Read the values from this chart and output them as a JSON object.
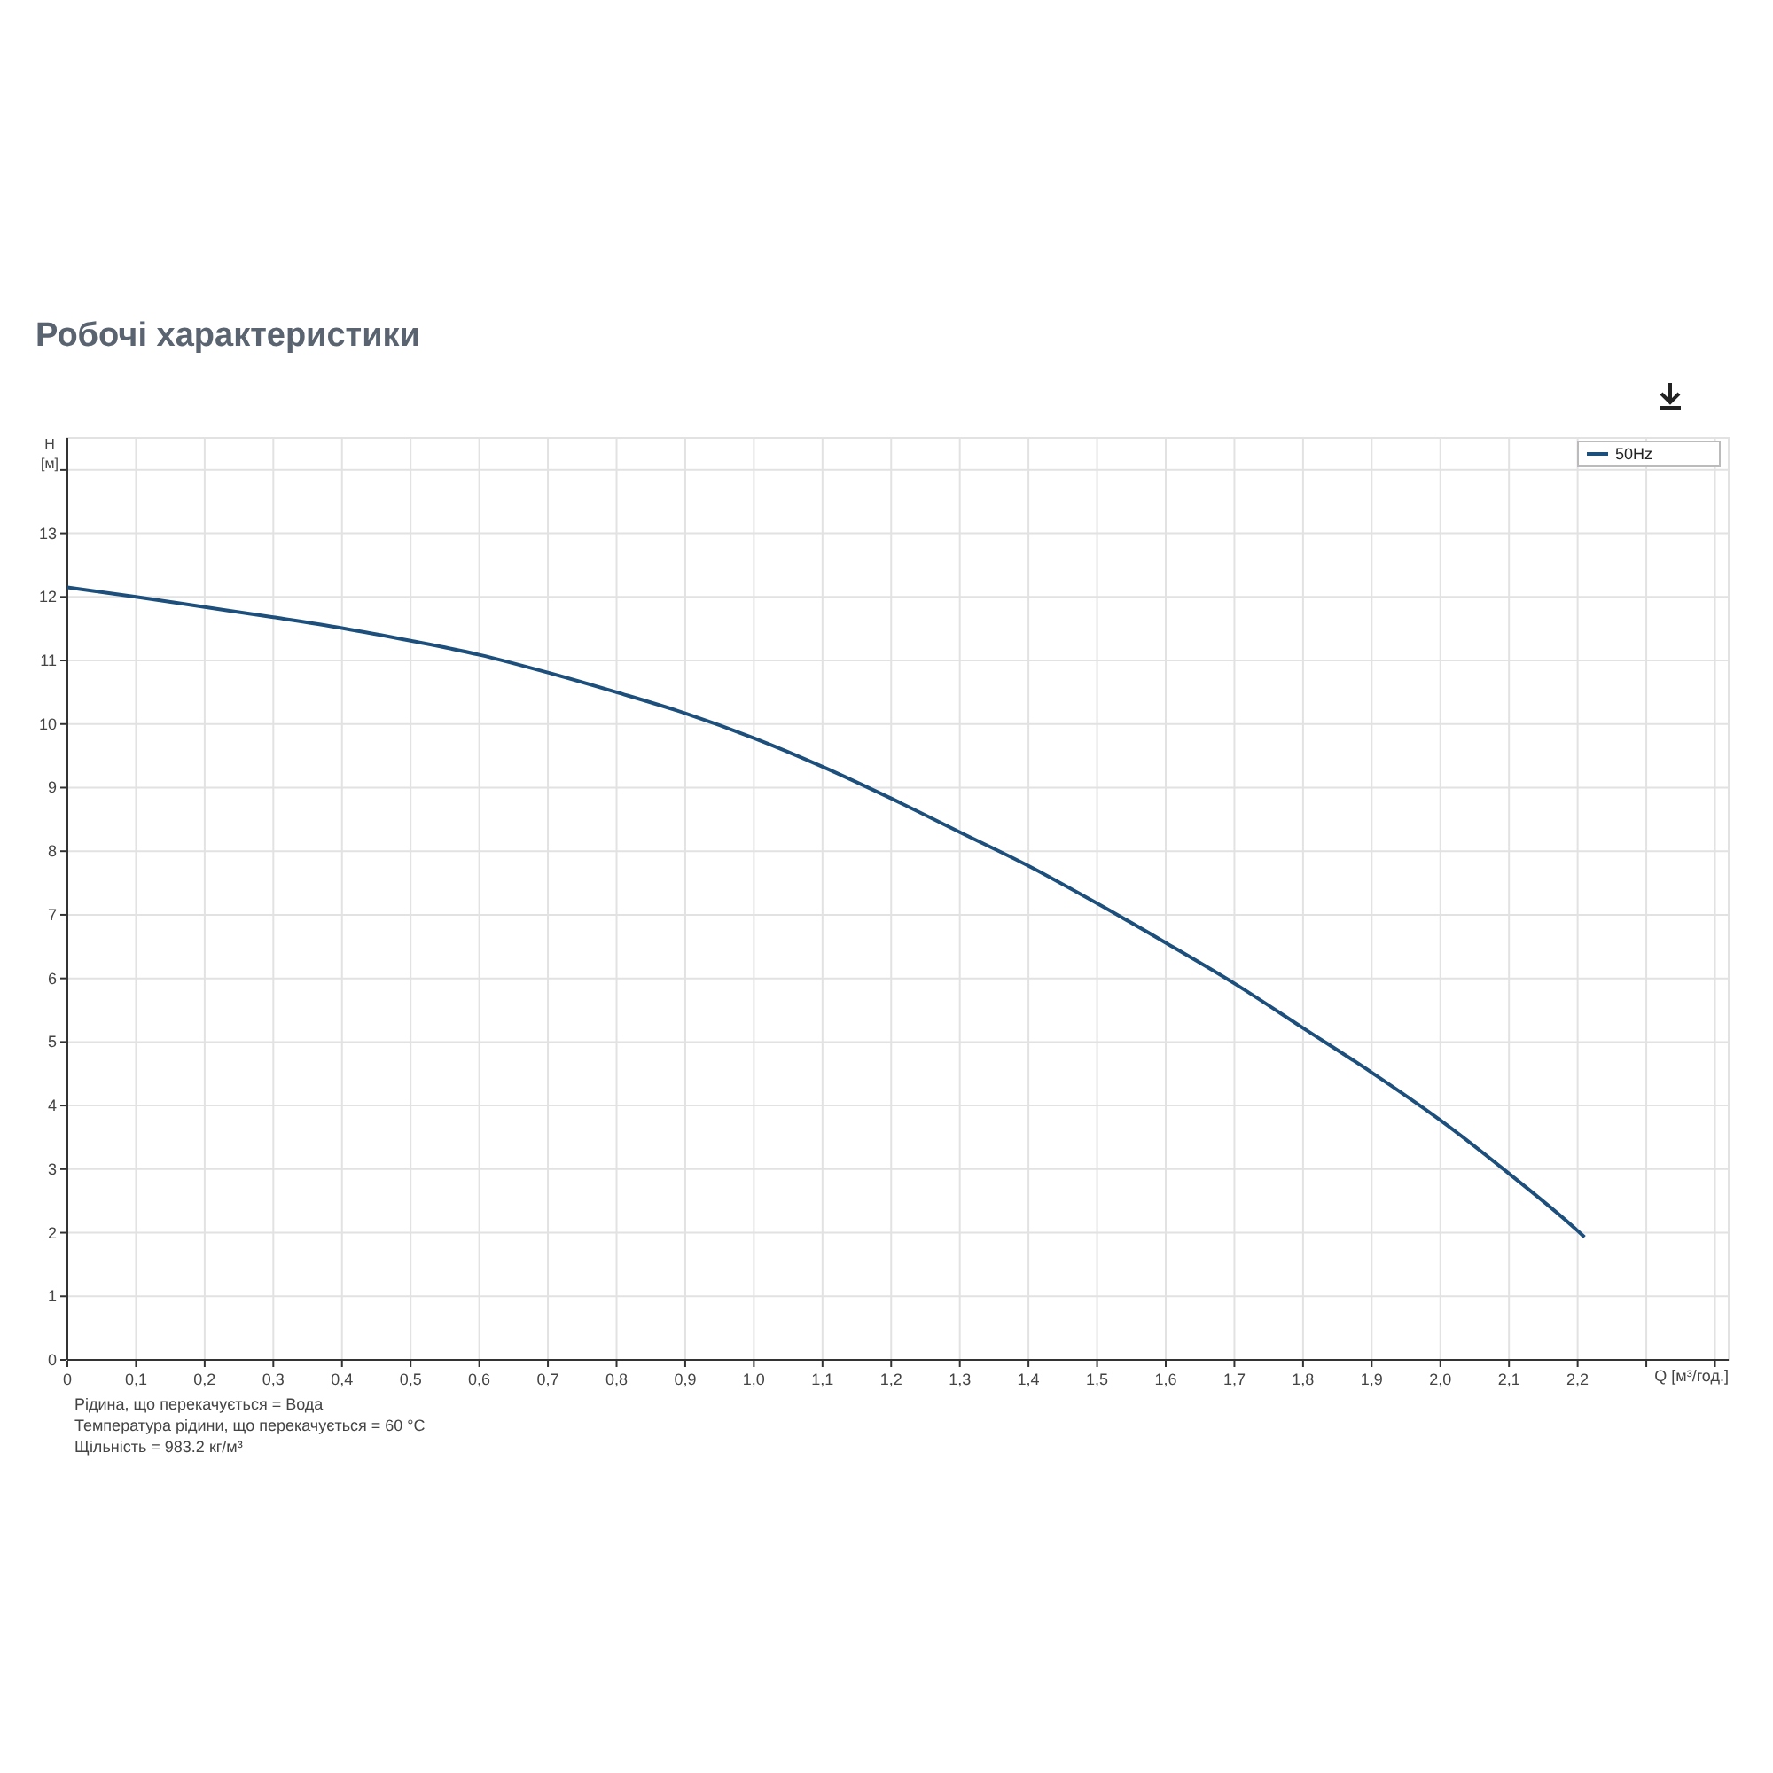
{
  "chart_data": {
    "type": "line",
    "title": "Робочі характеристики",
    "xlabel": "Q [м³/год.]",
    "ylabel": "H [м]",
    "x": [
      0,
      0.1,
      0.2,
      0.3,
      0.4,
      0.5,
      0.6,
      0.7,
      0.8,
      0.9,
      1.0,
      1.1,
      1.2,
      1.3,
      1.4,
      1.5,
      1.6,
      1.7,
      1.8,
      1.9,
      2.0,
      2.1,
      2.2,
      2.21
    ],
    "series": [
      {
        "name": "50Hz",
        "color": "#1d4f7c",
        "values": [
          12.15,
          12.0,
          11.84,
          11.68,
          11.51,
          11.31,
          11.09,
          10.81,
          10.5,
          10.17,
          9.78,
          9.33,
          8.83,
          8.3,
          7.77,
          7.18,
          6.56,
          5.92,
          5.22,
          4.52,
          3.77,
          2.93,
          2.03,
          1.93
        ]
      }
    ],
    "xlim": [
      0,
      2.42
    ],
    "ylim": [
      0,
      14.5
    ],
    "xticks": [
      0,
      {
        "value": 0.1,
        "label": "0,1"
      },
      {
        "value": 0.2,
        "label": "0,2"
      },
      {
        "value": 0.3,
        "label": "0,3"
      },
      {
        "value": 0.4,
        "label": "0,4"
      },
      {
        "value": 0.5,
        "label": "0,5"
      },
      {
        "value": 0.6,
        "label": "0,6"
      },
      {
        "value": 0.7,
        "label": "0,7"
      },
      {
        "value": 0.8,
        "label": "0,8"
      },
      {
        "value": 0.9,
        "label": "0,9"
      },
      {
        "value": 1.0,
        "label": "1,0"
      },
      {
        "value": 1.1,
        "label": "1,1"
      },
      {
        "value": 1.2,
        "label": "1,2"
      },
      {
        "value": 1.3,
        "label": "1,3"
      },
      {
        "value": 1.4,
        "label": "1,4"
      },
      {
        "value": 1.5,
        "label": "1,5"
      },
      {
        "value": 1.6,
        "label": "1,6"
      },
      {
        "value": 1.7,
        "label": "1,7"
      },
      {
        "value": 1.8,
        "label": "1,8"
      },
      {
        "value": 1.9,
        "label": "1,9"
      },
      {
        "value": 2.0,
        "label": "2,0"
      },
      {
        "value": 2.1,
        "label": "2,1"
      },
      {
        "value": 2.2,
        "label": "2,2"
      },
      {
        "value": 2.3,
        "label": null
      },
      {
        "value": 2.4,
        "label": null
      }
    ],
    "yticks": [
      0,
      1,
      2,
      3,
      4,
      5,
      6,
      7,
      8,
      9,
      10,
      11,
      12,
      13,
      {
        "value": 14,
        "label": null
      }
    ],
    "grid": true,
    "legend": "top right",
    "marker": "none",
    "line_style": "solid",
    "annotations": [
      "Рідина, що перекачується = Вода",
      "Температура рідини, що перекачується = 60 °C",
      "Щільність = 983.2 кг/м³"
    ]
  }
}
